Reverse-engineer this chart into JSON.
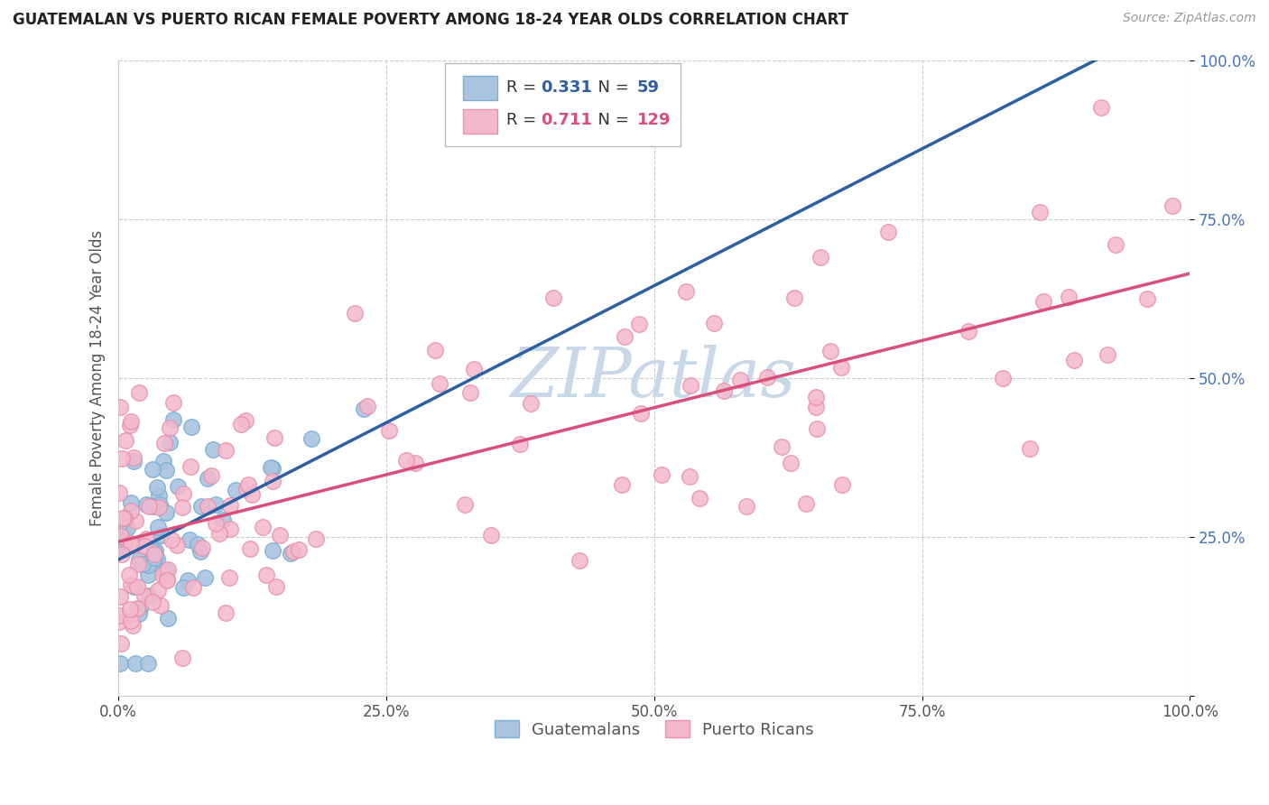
{
  "title": "GUATEMALAN VS PUERTO RICAN FEMALE POVERTY AMONG 18-24 YEAR OLDS CORRELATION CHART",
  "source": "Source: ZipAtlas.com",
  "ylabel": "Female Poverty Among 18-24 Year Olds",
  "xlim": [
    0,
    1.0
  ],
  "ylim": [
    0,
    1.0
  ],
  "xticks": [
    0.0,
    0.25,
    0.5,
    0.75,
    1.0
  ],
  "yticks": [
    0.0,
    0.25,
    0.5,
    0.75,
    1.0
  ],
  "xticklabels": [
    "0.0%",
    "25.0%",
    "50.0%",
    "75.0%",
    "100.0%"
  ],
  "yticklabels": [
    "",
    "25.0%",
    "50.0%",
    "75.0%",
    "100.0%"
  ],
  "ytick_color": "#4472c4",
  "xtick_color": "#555555",
  "guatemalan_color": "#aac4e0",
  "puerto_rican_color": "#f4b8cc",
  "guatemalan_edge": "#7bafd4",
  "puerto_rican_edge": "#e890aa",
  "trend_guatemalan_color": "#2e5fa3",
  "trend_puerto_rican_color": "#d94f7a",
  "trend_guatemalan_dashed": true,
  "R_guatemalan": 0.331,
  "N_guatemalan": 59,
  "R_puerto_rican": 0.711,
  "N_puerto_rican": 129,
  "background_color": "#ffffff",
  "grid_color": "#cccccc",
  "watermark_text": "ZIPatlas",
  "watermark_color": "#c8d8e8",
  "legend_label_guatemalan": "Guatemalans",
  "legend_label_puerto_rican": "Puerto Ricans",
  "seed": 42
}
